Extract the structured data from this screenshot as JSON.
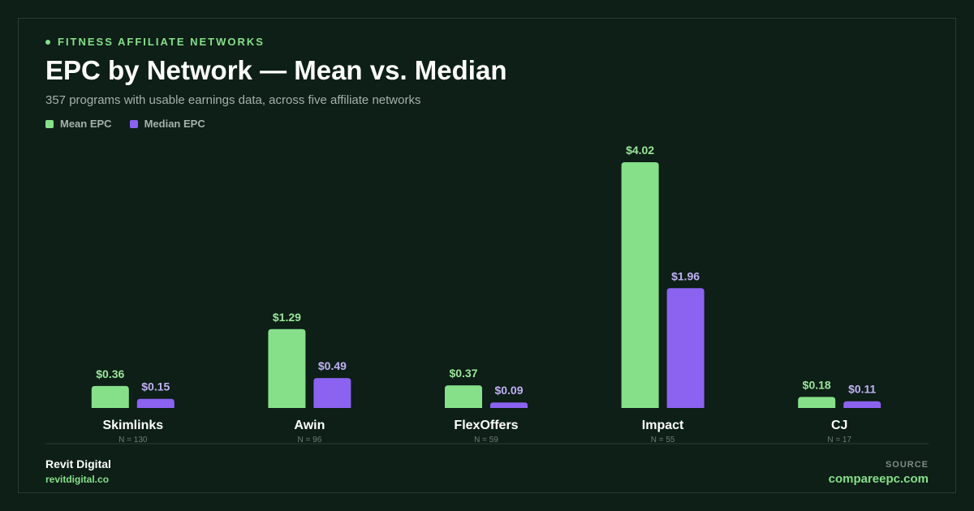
{
  "header": {
    "eyebrow": "FITNESS AFFILIATE NETWORKS",
    "title": "EPC by Network — Mean vs. Median",
    "subtitle": "357 programs with usable earnings data, across five affiliate networks"
  },
  "colors": {
    "mean": "#86e08a",
    "median": "#8b63f0",
    "mean_label": "#9be79d",
    "median_label": "#c0b0f5"
  },
  "chart_data": {
    "type": "bar",
    "title": "EPC by Network — Mean vs. Median",
    "categories": [
      "Skimlinks",
      "Awin",
      "FlexOffers",
      "Impact",
      "CJ"
    ],
    "sample_sizes": [
      "N = 130",
      "N = 96",
      "N = 59",
      "N = 55",
      "N = 17"
    ],
    "series": [
      {
        "name": "Mean EPC",
        "values": [
          0.36,
          1.29,
          0.37,
          4.02,
          0.18
        ],
        "labels": [
          "$0.36",
          "$1.29",
          "$0.37",
          "$4.02",
          "$0.18"
        ]
      },
      {
        "name": "Median EPC",
        "values": [
          0.15,
          0.49,
          0.09,
          1.96,
          0.11
        ],
        "labels": [
          "$0.15",
          "$0.49",
          "$0.09",
          "$1.96",
          "$0.11"
        ]
      }
    ],
    "ylim": [
      0,
      4.02
    ],
    "grid": false,
    "legend": "top-left"
  },
  "footer": {
    "brand": "Revit Digital",
    "brand_url": "revitdigital.co",
    "source_label": "SOURCE",
    "source_url": "compareepc.com"
  }
}
